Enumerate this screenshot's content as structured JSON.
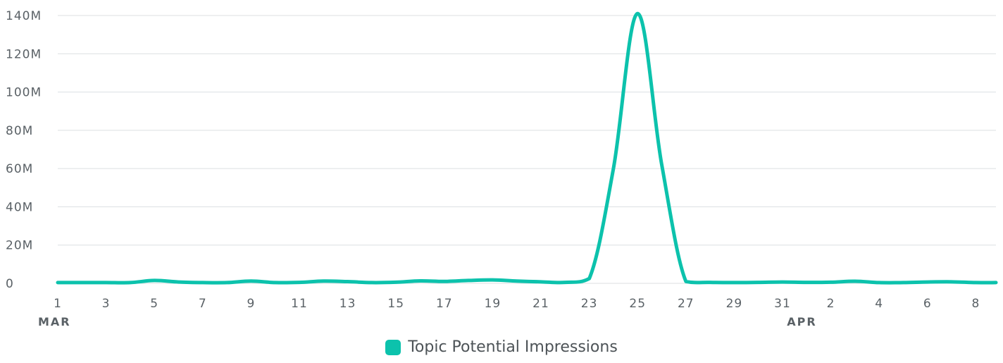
{
  "colors": {
    "series": "#0cc2ac",
    "grid": "#dcdfe2",
    "text": "#5a6166"
  },
  "legend": {
    "label": "Topic Potential Impressions"
  },
  "chart_data": {
    "type": "line",
    "title": "",
    "xlabel": "",
    "ylabel": "",
    "ylim": [
      0,
      140000000
    ],
    "y_ticks": [
      "0",
      "20M",
      "40M",
      "60M",
      "80M",
      "100M",
      "120M",
      "140M"
    ],
    "y_tick_values": [
      0,
      20000000,
      40000000,
      60000000,
      80000000,
      100000000,
      120000000,
      140000000
    ],
    "x_ticks": [
      "1",
      "3",
      "5",
      "7",
      "9",
      "11",
      "13",
      "15",
      "17",
      "19",
      "21",
      "23",
      "25",
      "27",
      "29",
      "31",
      "2",
      "4",
      "6",
      "8"
    ],
    "x_tick_dates": [
      "2024-03-01",
      "2024-03-03",
      "2024-03-05",
      "2024-03-07",
      "2024-03-09",
      "2024-03-11",
      "2024-03-13",
      "2024-03-15",
      "2024-03-17",
      "2024-03-19",
      "2024-03-21",
      "2024-03-23",
      "2024-03-25",
      "2024-03-27",
      "2024-03-29",
      "2024-03-31",
      "2024-04-02",
      "2024-04-04",
      "2024-04-06",
      "2024-04-08"
    ],
    "month_labels": [
      {
        "label": "MAR",
        "date": "2024-03-01"
      },
      {
        "label": "APR",
        "date": "2024-04-01"
      }
    ],
    "grid": true,
    "legend_position": "bottom-center",
    "series": [
      {
        "name": "Topic Potential Impressions",
        "color": "#0cc2ac",
        "x": [
          "2024-03-01",
          "2024-03-02",
          "2024-03-03",
          "2024-03-04",
          "2024-03-05",
          "2024-03-06",
          "2024-03-07",
          "2024-03-08",
          "2024-03-09",
          "2024-03-10",
          "2024-03-11",
          "2024-03-12",
          "2024-03-13",
          "2024-03-14",
          "2024-03-15",
          "2024-03-16",
          "2024-03-17",
          "2024-03-18",
          "2024-03-19",
          "2024-03-20",
          "2024-03-21",
          "2024-03-22",
          "2024-03-23",
          "2024-03-24",
          "2024-03-25",
          "2024-03-26",
          "2024-03-27",
          "2024-03-28",
          "2024-03-29",
          "2024-03-30",
          "2024-03-31",
          "2024-04-01",
          "2024-04-02",
          "2024-04-03",
          "2024-04-04",
          "2024-04-05",
          "2024-04-06",
          "2024-04-07",
          "2024-04-08",
          "2024-04-09"
        ],
        "values": [
          400000,
          400000,
          400000,
          400000,
          1500000,
          700000,
          400000,
          400000,
          1200000,
          400000,
          500000,
          1200000,
          900000,
          400000,
          600000,
          1300000,
          1000000,
          1500000,
          1800000,
          1200000,
          800000,
          500000,
          2500000,
          60000000,
          141000000,
          62000000,
          1000000,
          500000,
          400000,
          500000,
          700000,
          500000,
          600000,
          1100000,
          400000,
          400000,
          700000,
          800000,
          400000,
          400000
        ]
      }
    ]
  }
}
